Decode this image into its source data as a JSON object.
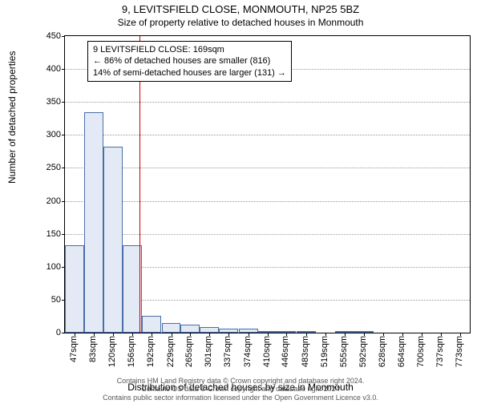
{
  "title_main": "9, LEVITSFIELD CLOSE, MONMOUTH, NP25 5BZ",
  "title_sub": "Size of property relative to detached houses in Monmouth",
  "yaxis_label": "Number of detached properties",
  "xaxis_label": "Distribution of detached houses by size in Monmouth",
  "footer_line1": "Contains HM Land Registry data © Crown copyright and database right 2024.",
  "footer_line2": "Contains OS data © Crown copyright and database right 2024",
  "footer_line3": "Contains public sector information licensed under the Open Government Licence v3.0.",
  "chart": {
    "type": "histogram",
    "ylim": [
      0,
      450
    ],
    "ytick_step": 50,
    "bar_fill": "#e3eaf5",
    "bar_stroke": "#4a6ea9",
    "grid_color": "#999999",
    "marker_color": "#cc0000",
    "marker_x": 169,
    "xticks": [
      47,
      83,
      120,
      156,
      192,
      229,
      265,
      301,
      337,
      374,
      410,
      446,
      483,
      519,
      555,
      592,
      628,
      664,
      700,
      737,
      773
    ],
    "xtick_suffix": "sqm",
    "series": [
      {
        "x": 47,
        "v": 132
      },
      {
        "x": 83,
        "v": 335
      },
      {
        "x": 120,
        "v": 282
      },
      {
        "x": 156,
        "v": 132
      },
      {
        "x": 192,
        "v": 25
      },
      {
        "x": 229,
        "v": 15
      },
      {
        "x": 265,
        "v": 12
      },
      {
        "x": 301,
        "v": 8
      },
      {
        "x": 337,
        "v": 6
      },
      {
        "x": 374,
        "v": 6
      },
      {
        "x": 410,
        "v": 3
      },
      {
        "x": 446,
        "v": 2
      },
      {
        "x": 483,
        "v": 2
      },
      {
        "x": 519,
        "v": 0
      },
      {
        "x": 555,
        "v": 1
      },
      {
        "x": 592,
        "v": 2
      },
      {
        "x": 628,
        "v": 0
      },
      {
        "x": 664,
        "v": 0
      },
      {
        "x": 700,
        "v": 0
      },
      {
        "x": 737,
        "v": 0
      },
      {
        "x": 773,
        "v": 0
      }
    ]
  },
  "annotation": {
    "line1": "9 LEVITSFIELD CLOSE: 169sqm",
    "line2": "← 86% of detached houses are smaller (816)",
    "line3": "14% of semi-detached houses are larger (131) →"
  }
}
